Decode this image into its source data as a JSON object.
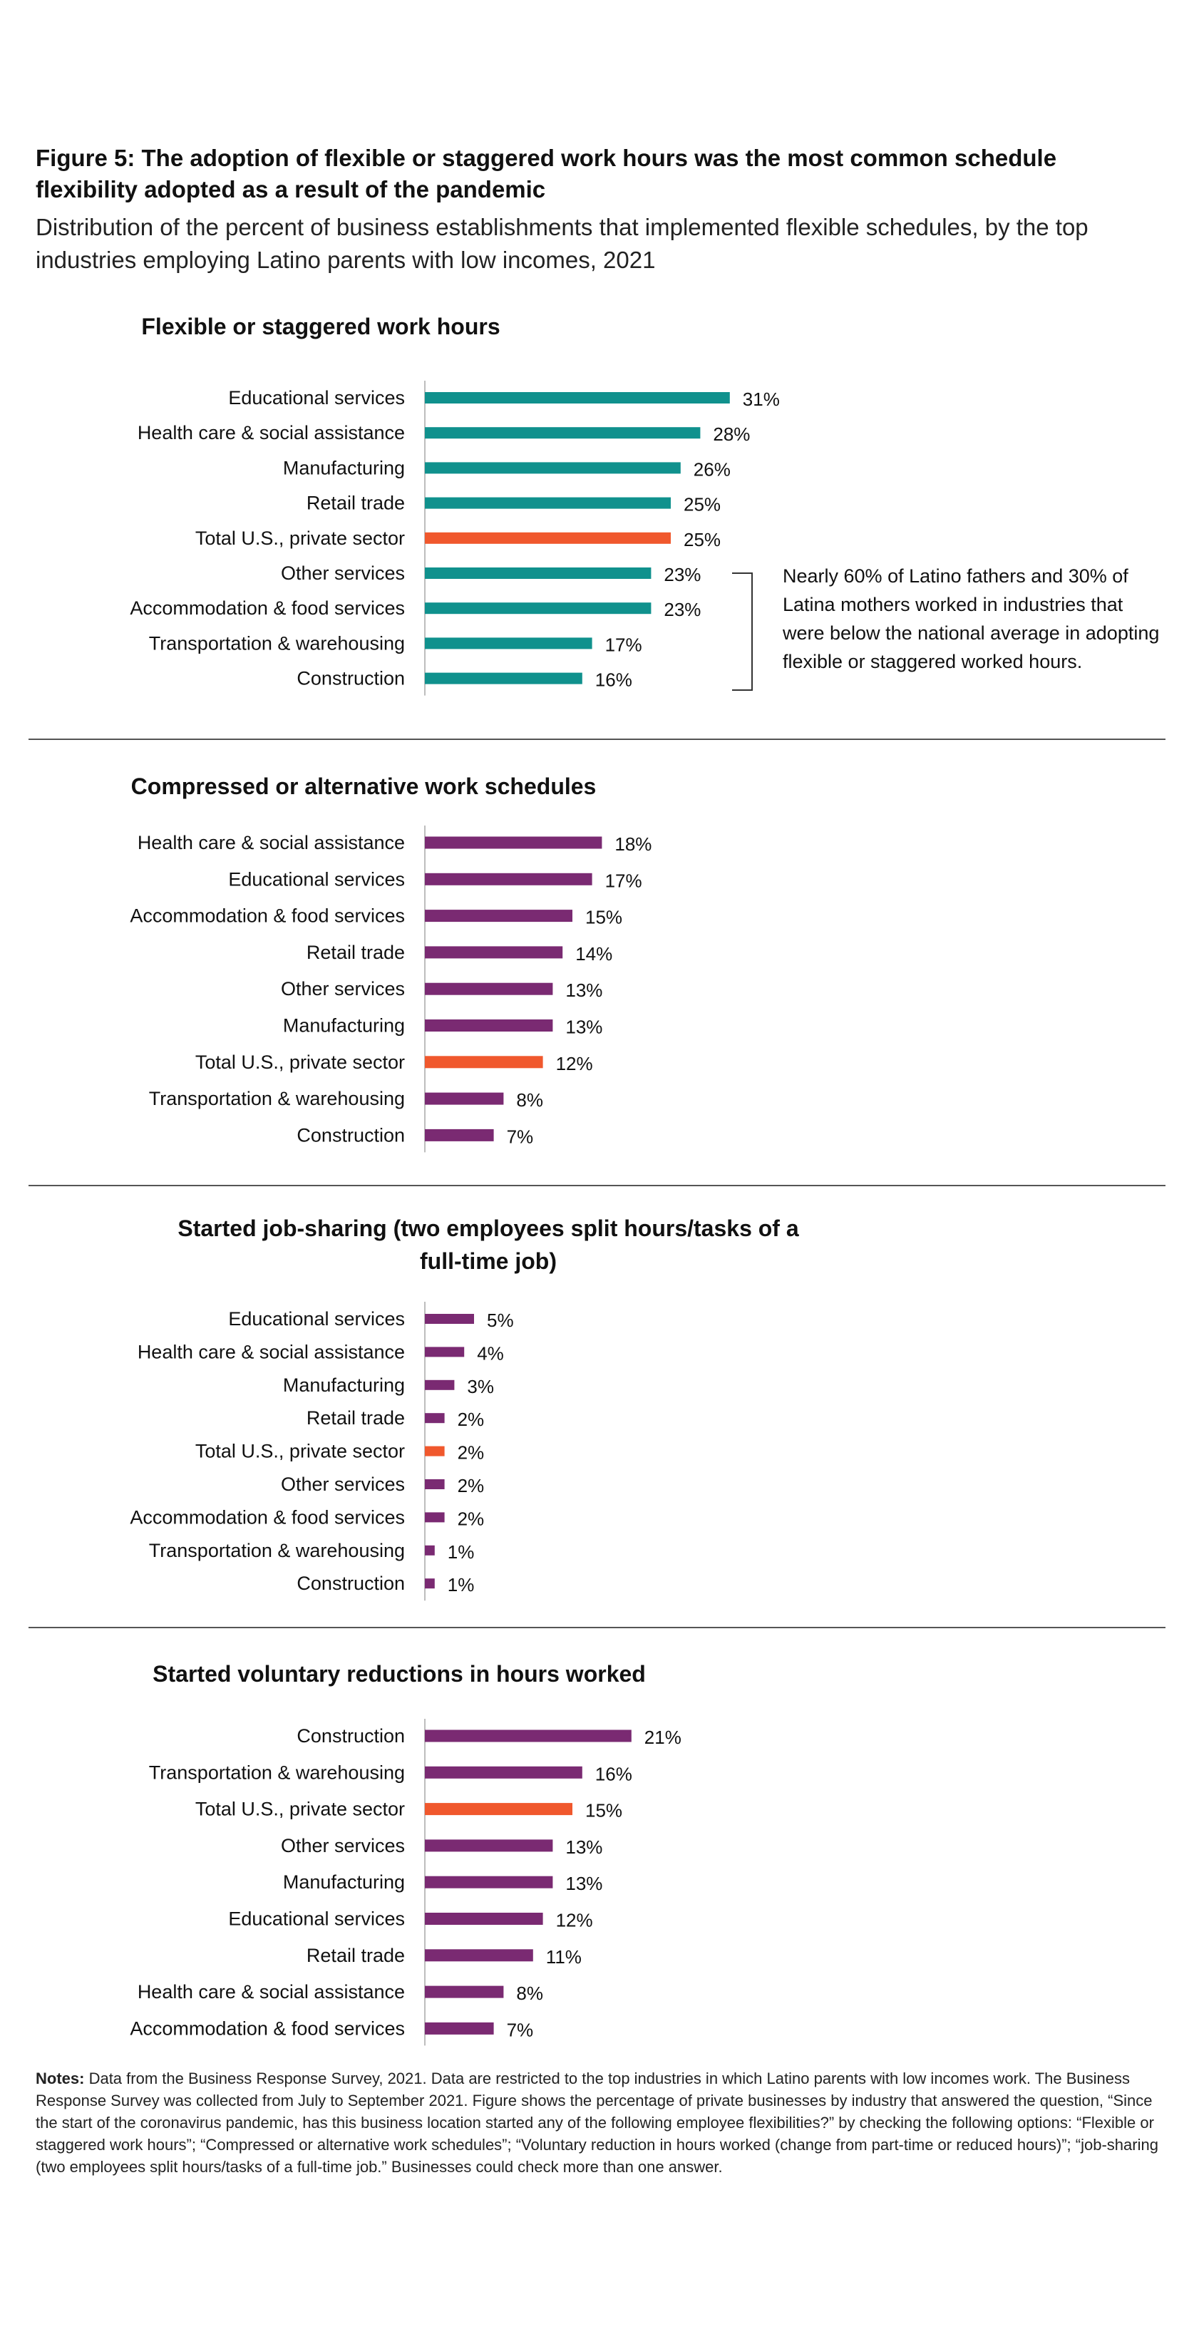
{
  "figure": {
    "title": "Figure 5: The adoption of flexible or staggered work hours was the most common schedule flexibility adopted as a result of the pandemic",
    "subtitle": "Distribution of the percent of business establishments that implemented flexible schedules, by the top industries employing Latino parents with low incomes, 2021"
  },
  "colors": {
    "teal": "#10918d",
    "purple": "#7a2a72",
    "orange": "#f0582d",
    "axis": "#bdbdbd"
  },
  "annotation": {
    "text": "Nearly 60% of Latino fathers and 30% of Latina mothers worked in industries that were below the national average in adopting flexible or staggered worked hours."
  },
  "notes": {
    "label": "Notes:",
    "text": " Data from the Business Response Survey, 2021. Data are restricted to the top industries in which Latino parents with low incomes work. The Business Response Survey was collected from July to September 2021. Figure shows the percentage of private businesses by industry that answered the question, “Since the start of the coronavirus pandemic, has this business location started any of the following employee flexibilities?” by checking the following options: “Flexible or staggered work hours”; “Compressed or alternative work schedules”; “Voluntary reduction in hours worked (change from part-time or reduced hours)”; “job-sharing (two employees split hours/tasks of a full-time job.” Businesses could check more than one answer."
  },
  "chart_data": [
    {
      "type": "bar",
      "orientation": "horizontal",
      "title": "Flexible or staggered work hours",
      "categories": [
        "Educational services",
        "Health care & social assistance",
        "Manufacturing",
        "Retail trade",
        "Total U.S., private sector",
        "Other services",
        "Accommodation & food services",
        "Transportation & warehousing",
        "Construction"
      ],
      "values": [
        31,
        28,
        26,
        25,
        25,
        23,
        23,
        17,
        16
      ],
      "labels": [
        "31%",
        "28%",
        "26%",
        "25%",
        "25%",
        "23%",
        "23%",
        "17%",
        "16%"
      ],
      "bar_color": "#10918d",
      "highlight": "Total U.S., private sector",
      "highlight_color": "#f0582d"
    },
    {
      "type": "bar",
      "orientation": "horizontal",
      "title": "Compressed or alternative work schedules",
      "categories": [
        "Health care & social assistance",
        "Educational services",
        "Accommodation & food services",
        "Retail trade",
        "Other services",
        "Manufacturing",
        "Total U.S., private sector",
        "Transportation & warehousing",
        "Construction"
      ],
      "values": [
        18,
        17,
        15,
        14,
        13,
        13,
        12,
        8,
        7
      ],
      "labels": [
        "18%",
        "17%",
        "15%",
        "14%",
        "13%",
        "13%",
        "12%",
        "8%",
        "7%"
      ],
      "bar_color": "#7a2a72",
      "highlight": "Total U.S., private sector",
      "highlight_color": "#f0582d"
    },
    {
      "type": "bar",
      "orientation": "horizontal",
      "title": "Started job-sharing (two employees split hours/tasks of a full-time job)",
      "categories": [
        "Educational services",
        "Health care & social assistance",
        "Manufacturing",
        "Retail trade",
        "Total U.S., private sector",
        "Other services",
        "Accommodation & food services",
        "Transportation & warehousing",
        "Construction"
      ],
      "values": [
        5,
        4,
        3,
        2,
        2,
        2,
        2,
        1,
        1
      ],
      "labels": [
        "5%",
        "4%",
        "3%",
        "2%",
        "2%",
        "2%",
        "2%",
        "1%",
        "1%"
      ],
      "bar_color": "#7a2a72",
      "highlight": "Total U.S., private sector",
      "highlight_color": "#f0582d"
    },
    {
      "type": "bar",
      "orientation": "horizontal",
      "title": "Started voluntary reductions in hours worked",
      "categories": [
        "Construction",
        "Transportation & warehousing",
        "Total U.S., private sector",
        "Other services",
        "Manufacturing",
        "Educational services",
        "Retail trade",
        "Health care & social assistance",
        "Accommodation & food services"
      ],
      "values": [
        21,
        16,
        15,
        13,
        13,
        12,
        11,
        8,
        7
      ],
      "labels": [
        "21%",
        "16%",
        "15%",
        "13%",
        "13%",
        "12%",
        "11%",
        "8%",
        "7%"
      ],
      "bar_color": "#7a2a72",
      "highlight": "Total U.S., private sector",
      "highlight_color": "#f0582d"
    }
  ]
}
